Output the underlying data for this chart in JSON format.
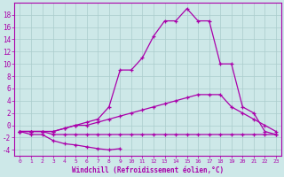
{
  "xlabel": "Windchill (Refroidissement éolien,°C)",
  "background_color": "#cde8e8",
  "line_color": "#aa00aa",
  "grid_color": "#aacccc",
  "x_values": [
    0,
    1,
    2,
    3,
    4,
    5,
    6,
    7,
    8,
    9,
    10,
    11,
    12,
    13,
    14,
    15,
    16,
    17,
    18,
    19,
    20,
    21,
    22,
    23
  ],
  "line1_x": [
    0,
    1,
    2,
    3,
    4,
    5,
    6,
    7,
    8,
    9
  ],
  "line1_y": [
    -1,
    -1.5,
    -1.5,
    -2.5,
    -3.0,
    -3.2,
    -3.5,
    -3.8,
    -4.0,
    -3.8
  ],
  "line2_y": [
    -1,
    -1,
    -1,
    -1.5,
    -1.5,
    -1.5,
    -1.5,
    -1.5,
    -1.5,
    -1.5,
    -1.5,
    -1.5,
    -1.5,
    -1.5,
    -1.5,
    -1.5,
    -1.5,
    -1.5,
    -1.5,
    -1.5,
    -1.5,
    -1.5,
    -1.5,
    -1.5
  ],
  "line3_y": [
    -1,
    -1,
    -1,
    -1,
    -0.5,
    0,
    0,
    0.5,
    1,
    1.5,
    2,
    2.5,
    3,
    3.5,
    4,
    4.5,
    5,
    5,
    5,
    3,
    2,
    1,
    0,
    -1
  ],
  "line4_y": [
    -1,
    -1,
    -1,
    -1,
    -0.5,
    0,
    0.5,
    1,
    3,
    9,
    9,
    11,
    14.5,
    17,
    17,
    19,
    17,
    17,
    10,
    10,
    3,
    2,
    -1,
    -1.5
  ],
  "ylim": [
    -5,
    20
  ],
  "xlim": [
    -0.5,
    23.5
  ],
  "yticks": [
    -4,
    -2,
    0,
    2,
    4,
    6,
    8,
    10,
    12,
    14,
    16,
    18
  ],
  "xticks": [
    0,
    1,
    2,
    3,
    4,
    5,
    6,
    7,
    8,
    9,
    10,
    11,
    12,
    13,
    14,
    15,
    16,
    17,
    18,
    19,
    20,
    21,
    22,
    23
  ]
}
